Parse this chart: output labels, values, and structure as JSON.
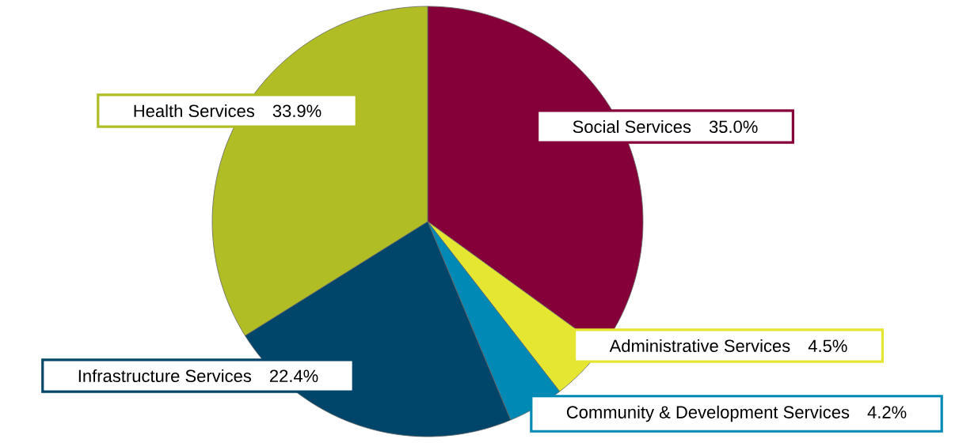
{
  "chart_data": {
    "type": "pie",
    "categories": [
      "Social Services",
      "Administrative Services",
      "Community & Development Services",
      "Infrastructure Services",
      "Health Services"
    ],
    "values": [
      35.0,
      4.5,
      4.2,
      22.4,
      33.9
    ],
    "colors": [
      "#850038",
      "#e5e632",
      "#0089b4",
      "#00466b",
      "#b0bd24"
    ],
    "value_labels": [
      "35.0%",
      "4.5%",
      "4.2%",
      "22.4%",
      "33.9%"
    ]
  }
}
